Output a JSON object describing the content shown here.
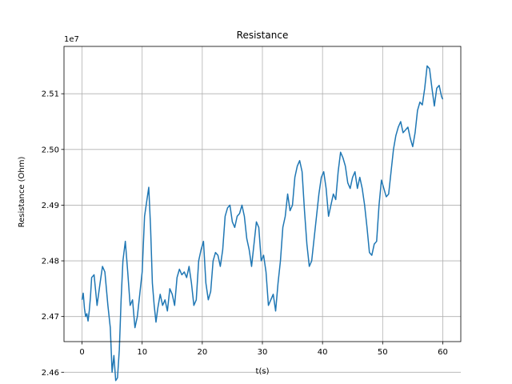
{
  "chart_data": {
    "type": "line",
    "title": "Resistance",
    "xlabel": "t(s)",
    "ylabel": "Resistance (Ohm)",
    "offset_label": "1e7",
    "xlim": [
      -3,
      63
    ],
    "ylim": [
      2.4655,
      2.5185
    ],
    "x_ticks": [
      0,
      10,
      20,
      30,
      40,
      50,
      60
    ],
    "x_tick_labels": [
      "0",
      "10",
      "20",
      "30",
      "40",
      "50",
      "60"
    ],
    "y_ticks": [
      2.46,
      2.47,
      2.48,
      2.49,
      2.5,
      2.51
    ],
    "y_tick_labels": [
      "2.46",
      "2.47",
      "2.48",
      "2.49",
      "2.50",
      "2.51"
    ],
    "grid": true,
    "line_color": "#1f77b4",
    "series": [
      {
        "x": [
          0,
          0.2,
          0.4,
          0.6,
          0.8,
          1.0,
          1.2,
          1.4,
          1.6,
          2.0,
          2.5,
          3.0,
          3.4,
          3.8,
          4.3,
          4.7,
          5.0,
          5.3,
          5.6,
          5.9,
          6.2,
          6.5,
          6.8,
          7.2,
          7.6,
          8.0,
          8.4,
          8.8,
          9.2,
          9.6,
          10.0,
          10.4,
          10.8,
          11.1,
          11.4,
          11.7,
          12.0,
          12.3,
          12.6,
          13.0,
          13.4,
          13.8,
          14.2,
          14.6,
          15.0,
          15.4,
          15.8,
          16.2,
          16.6,
          17.0,
          17.4,
          17.8,
          18.2,
          18.6,
          19.0,
          19.4,
          19.8,
          20.2,
          20.6,
          21.0,
          21.4,
          21.8,
          22.2,
          22.6,
          23.0,
          23.4,
          23.8,
          24.2,
          24.6,
          25.0,
          25.4,
          25.8,
          26.2,
          26.6,
          27.0,
          27.4,
          27.8,
          28.2,
          28.6,
          29.0,
          29.4,
          29.8,
          30.2,
          30.6,
          31.0,
          31.4,
          31.8,
          32.2,
          32.6,
          33.0,
          33.4,
          33.8,
          34.2,
          34.6,
          35.0,
          35.4,
          35.8,
          36.2,
          36.6,
          37.0,
          37.4,
          37.8,
          38.2,
          38.6,
          39.0,
          39.4,
          39.8,
          40.2,
          40.6,
          41.0,
          41.4,
          41.8,
          42.2,
          42.6,
          43.0,
          43.4,
          43.8,
          44.2,
          44.6,
          45.0,
          45.4,
          45.8,
          46.2,
          46.6,
          47.0,
          47.4,
          47.8,
          48.2,
          48.6,
          49.0,
          49.4,
          49.8,
          50.2,
          50.6,
          51.0,
          51.4,
          51.8,
          52.2,
          52.6,
          53.0,
          53.4,
          53.8,
          54.2,
          54.6,
          55.0,
          55.4,
          55.8,
          56.2,
          56.6,
          57.0,
          57.4,
          57.8,
          58.2,
          58.6,
          59.0,
          59.4,
          59.8,
          60.0
        ],
        "y": [
          2.473,
          2.4742,
          2.4715,
          2.47,
          2.4705,
          2.4692,
          2.471,
          2.4735,
          2.477,
          2.4775,
          2.472,
          2.476,
          2.479,
          2.478,
          2.472,
          2.468,
          2.46,
          2.463,
          2.4585,
          2.459,
          2.464,
          2.473,
          2.48,
          2.4835,
          2.478,
          2.472,
          2.473,
          2.468,
          2.47,
          2.474,
          2.478,
          2.488,
          2.491,
          2.4932,
          2.486,
          2.476,
          2.472,
          2.469,
          2.4715,
          2.474,
          2.472,
          2.473,
          2.471,
          2.475,
          2.474,
          2.472,
          2.477,
          2.4785,
          2.4775,
          2.478,
          2.477,
          2.479,
          2.476,
          2.472,
          2.473,
          2.48,
          2.482,
          2.4835,
          2.476,
          2.473,
          2.4745,
          2.48,
          2.4815,
          2.481,
          2.479,
          2.482,
          2.488,
          2.4895,
          2.49,
          2.487,
          2.486,
          2.488,
          2.4885,
          2.49,
          2.488,
          2.484,
          2.482,
          2.479,
          2.483,
          2.487,
          2.486,
          2.48,
          2.481,
          2.478,
          2.472,
          2.473,
          2.474,
          2.471,
          2.476,
          2.48,
          2.486,
          2.488,
          2.492,
          2.489,
          2.49,
          2.495,
          2.497,
          2.498,
          2.496,
          2.489,
          2.483,
          2.479,
          2.48,
          2.484,
          2.488,
          2.492,
          2.495,
          2.496,
          2.493,
          2.488,
          2.49,
          2.492,
          2.491,
          2.496,
          2.4995,
          2.4985,
          2.497,
          2.494,
          2.493,
          2.495,
          2.496,
          2.493,
          2.495,
          2.493,
          2.49,
          2.486,
          2.4815,
          2.481,
          2.483,
          2.4835,
          2.49,
          2.4945,
          2.493,
          2.4915,
          2.492,
          2.496,
          2.5,
          2.5025,
          2.504,
          2.505,
          2.503,
          2.5035,
          2.504,
          2.502,
          2.5005,
          2.503,
          2.507,
          2.5085,
          2.508,
          2.511,
          2.515,
          2.5145,
          2.511,
          2.5078,
          2.511,
          2.5115,
          2.5095,
          2.509
        ]
      }
    ]
  }
}
